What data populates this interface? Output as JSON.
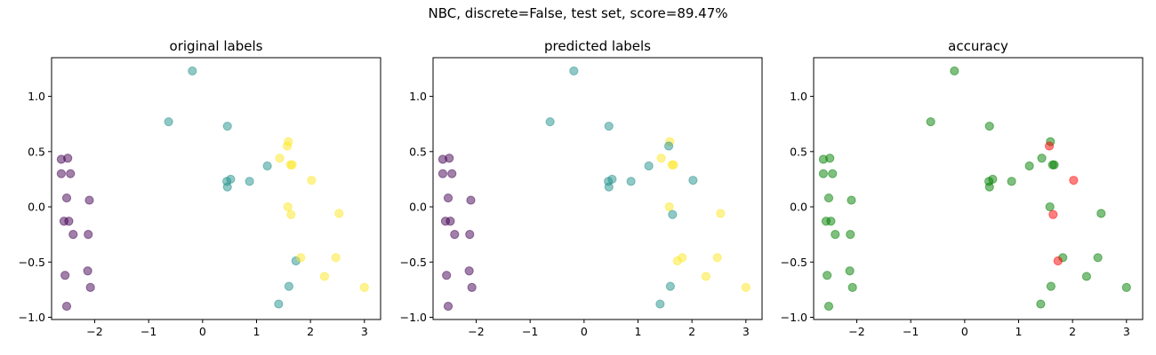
{
  "figure": {
    "suptitle": "NBC, discrete=False, test set, score=89.47%"
  },
  "chart_data": [
    {
      "type": "scatter",
      "title": "original labels",
      "xlim": [
        -2.8,
        3.3
      ],
      "ylim": [
        -1.02,
        1.35
      ],
      "xticks": [
        -2,
        -1,
        0,
        1,
        2,
        3
      ],
      "xtick_labels": [
        "−2",
        "−1",
        "0",
        "1",
        "2",
        "3"
      ],
      "yticks": [
        -1.0,
        -0.5,
        0.0,
        0.5,
        1.0
      ],
      "ytick_labels": [
        "−1.0",
        "−0.5",
        "0.0",
        "0.5",
        "1.0"
      ],
      "grid": false,
      "points": [
        {
          "x": -2.62,
          "y": 0.43,
          "color": "#440154"
        },
        {
          "x": -2.5,
          "y": 0.44,
          "color": "#440154"
        },
        {
          "x": -2.62,
          "y": 0.3,
          "color": "#440154"
        },
        {
          "x": -2.45,
          "y": 0.3,
          "color": "#440154"
        },
        {
          "x": -2.52,
          "y": 0.08,
          "color": "#440154"
        },
        {
          "x": -2.1,
          "y": 0.06,
          "color": "#440154"
        },
        {
          "x": -2.57,
          "y": -0.13,
          "color": "#440154"
        },
        {
          "x": -2.48,
          "y": -0.13,
          "color": "#440154"
        },
        {
          "x": -2.4,
          "y": -0.25,
          "color": "#440154"
        },
        {
          "x": -2.12,
          "y": -0.25,
          "color": "#440154"
        },
        {
          "x": -2.13,
          "y": -0.58,
          "color": "#440154"
        },
        {
          "x": -2.55,
          "y": -0.62,
          "color": "#440154"
        },
        {
          "x": -2.08,
          "y": -0.73,
          "color": "#440154"
        },
        {
          "x": -2.52,
          "y": -0.9,
          "color": "#440154"
        },
        {
          "x": -0.19,
          "y": 1.23,
          "color": "#21918c"
        },
        {
          "x": -0.63,
          "y": 0.77,
          "color": "#21918c"
        },
        {
          "x": 0.46,
          "y": 0.73,
          "color": "#21918c"
        },
        {
          "x": 1.2,
          "y": 0.37,
          "color": "#21918c"
        },
        {
          "x": 0.45,
          "y": 0.23,
          "color": "#21918c"
        },
        {
          "x": 0.52,
          "y": 0.25,
          "color": "#21918c"
        },
        {
          "x": 0.46,
          "y": 0.18,
          "color": "#21918c"
        },
        {
          "x": 0.87,
          "y": 0.23,
          "color": "#21918c"
        },
        {
          "x": 1.73,
          "y": -0.49,
          "color": "#21918c"
        },
        {
          "x": 1.6,
          "y": -0.72,
          "color": "#21918c"
        },
        {
          "x": 1.41,
          "y": -0.88,
          "color": "#21918c"
        },
        {
          "x": 1.59,
          "y": 0.59,
          "color": "#fde725"
        },
        {
          "x": 1.57,
          "y": 0.55,
          "color": "#fde725"
        },
        {
          "x": 1.43,
          "y": 0.44,
          "color": "#fde725"
        },
        {
          "x": 1.63,
          "y": 0.38,
          "color": "#fde725"
        },
        {
          "x": 1.66,
          "y": 0.38,
          "color": "#fde725"
        },
        {
          "x": 2.02,
          "y": 0.24,
          "color": "#fde725"
        },
        {
          "x": 1.58,
          "y": 0.0,
          "color": "#fde725"
        },
        {
          "x": 1.64,
          "y": -0.07,
          "color": "#fde725"
        },
        {
          "x": 2.53,
          "y": -0.06,
          "color": "#fde725"
        },
        {
          "x": 1.82,
          "y": -0.46,
          "color": "#fde725"
        },
        {
          "x": 2.47,
          "y": -0.46,
          "color": "#fde725"
        },
        {
          "x": 2.26,
          "y": -0.63,
          "color": "#fde725"
        },
        {
          "x": 3.0,
          "y": -0.73,
          "color": "#fde725"
        }
      ]
    },
    {
      "type": "scatter",
      "title": "predicted labels",
      "xlim": [
        -2.8,
        3.3
      ],
      "ylim": [
        -1.02,
        1.35
      ],
      "xticks": [
        -2,
        -1,
        0,
        1,
        2,
        3
      ],
      "xtick_labels": [
        "−2",
        "−1",
        "0",
        "1",
        "2",
        "3"
      ],
      "yticks": [
        -1.0,
        -0.5,
        0.0,
        0.5,
        1.0
      ],
      "ytick_labels": [
        "−1.0",
        "−0.5",
        "0.0",
        "0.5",
        "1.0"
      ],
      "grid": false,
      "points": [
        {
          "x": -2.62,
          "y": 0.43,
          "color": "#440154"
        },
        {
          "x": -2.5,
          "y": 0.44,
          "color": "#440154"
        },
        {
          "x": -2.62,
          "y": 0.3,
          "color": "#440154"
        },
        {
          "x": -2.45,
          "y": 0.3,
          "color": "#440154"
        },
        {
          "x": -2.52,
          "y": 0.08,
          "color": "#440154"
        },
        {
          "x": -2.1,
          "y": 0.06,
          "color": "#440154"
        },
        {
          "x": -2.57,
          "y": -0.13,
          "color": "#440154"
        },
        {
          "x": -2.48,
          "y": -0.13,
          "color": "#440154"
        },
        {
          "x": -2.4,
          "y": -0.25,
          "color": "#440154"
        },
        {
          "x": -2.12,
          "y": -0.25,
          "color": "#440154"
        },
        {
          "x": -2.13,
          "y": -0.58,
          "color": "#440154"
        },
        {
          "x": -2.55,
          "y": -0.62,
          "color": "#440154"
        },
        {
          "x": -2.08,
          "y": -0.73,
          "color": "#440154"
        },
        {
          "x": -2.52,
          "y": -0.9,
          "color": "#440154"
        },
        {
          "x": -0.19,
          "y": 1.23,
          "color": "#21918c"
        },
        {
          "x": -0.63,
          "y": 0.77,
          "color": "#21918c"
        },
        {
          "x": 0.46,
          "y": 0.73,
          "color": "#21918c"
        },
        {
          "x": 1.2,
          "y": 0.37,
          "color": "#21918c"
        },
        {
          "x": 0.45,
          "y": 0.23,
          "color": "#21918c"
        },
        {
          "x": 0.52,
          "y": 0.25,
          "color": "#21918c"
        },
        {
          "x": 0.46,
          "y": 0.18,
          "color": "#21918c"
        },
        {
          "x": 0.87,
          "y": 0.23,
          "color": "#21918c"
        },
        {
          "x": 1.6,
          "y": -0.72,
          "color": "#21918c"
        },
        {
          "x": 1.41,
          "y": -0.88,
          "color": "#21918c"
        },
        {
          "x": 1.59,
          "y": 0.59,
          "color": "#fde725"
        },
        {
          "x": 1.57,
          "y": 0.55,
          "color": "#21918c"
        },
        {
          "x": 1.43,
          "y": 0.44,
          "color": "#fde725"
        },
        {
          "x": 1.63,
          "y": 0.38,
          "color": "#fde725"
        },
        {
          "x": 1.66,
          "y": 0.38,
          "color": "#fde725"
        },
        {
          "x": 2.02,
          "y": 0.24,
          "color": "#21918c"
        },
        {
          "x": 1.58,
          "y": 0.0,
          "color": "#fde725"
        },
        {
          "x": 1.64,
          "y": -0.07,
          "color": "#21918c"
        },
        {
          "x": 2.53,
          "y": -0.06,
          "color": "#fde725"
        },
        {
          "x": 1.73,
          "y": -0.49,
          "color": "#fde725"
        },
        {
          "x": 1.82,
          "y": -0.46,
          "color": "#fde725"
        },
        {
          "x": 2.47,
          "y": -0.46,
          "color": "#fde725"
        },
        {
          "x": 2.26,
          "y": -0.63,
          "color": "#fde725"
        },
        {
          "x": 3.0,
          "y": -0.73,
          "color": "#fde725"
        }
      ]
    },
    {
      "type": "scatter",
      "title": "accuracy",
      "xlim": [
        -2.8,
        3.3
      ],
      "ylim": [
        -1.02,
        1.35
      ],
      "xticks": [
        -2,
        -1,
        0,
        1,
        2,
        3
      ],
      "xtick_labels": [
        "−2",
        "−1",
        "0",
        "1",
        "2",
        "3"
      ],
      "yticks": [
        -1.0,
        -0.5,
        0.0,
        0.5,
        1.0
      ],
      "ytick_labels": [
        "−1.0",
        "−0.5",
        "0.0",
        "0.5",
        "1.0"
      ],
      "grid": false,
      "points": [
        {
          "x": -2.62,
          "y": 0.43,
          "color": "#008000"
        },
        {
          "x": -2.5,
          "y": 0.44,
          "color": "#008000"
        },
        {
          "x": -2.62,
          "y": 0.3,
          "color": "#008000"
        },
        {
          "x": -2.45,
          "y": 0.3,
          "color": "#008000"
        },
        {
          "x": -2.52,
          "y": 0.08,
          "color": "#008000"
        },
        {
          "x": -2.1,
          "y": 0.06,
          "color": "#008000"
        },
        {
          "x": -2.57,
          "y": -0.13,
          "color": "#008000"
        },
        {
          "x": -2.48,
          "y": -0.13,
          "color": "#008000"
        },
        {
          "x": -2.4,
          "y": -0.25,
          "color": "#008000"
        },
        {
          "x": -2.12,
          "y": -0.25,
          "color": "#008000"
        },
        {
          "x": -2.13,
          "y": -0.58,
          "color": "#008000"
        },
        {
          "x": -2.55,
          "y": -0.62,
          "color": "#008000"
        },
        {
          "x": -2.08,
          "y": -0.73,
          "color": "#008000"
        },
        {
          "x": -2.52,
          "y": -0.9,
          "color": "#008000"
        },
        {
          "x": -0.19,
          "y": 1.23,
          "color": "#008000"
        },
        {
          "x": -0.63,
          "y": 0.77,
          "color": "#008000"
        },
        {
          "x": 0.46,
          "y": 0.73,
          "color": "#008000"
        },
        {
          "x": 1.2,
          "y": 0.37,
          "color": "#008000"
        },
        {
          "x": 0.45,
          "y": 0.23,
          "color": "#008000"
        },
        {
          "x": 0.52,
          "y": 0.25,
          "color": "#008000"
        },
        {
          "x": 0.46,
          "y": 0.18,
          "color": "#008000"
        },
        {
          "x": 0.87,
          "y": 0.23,
          "color": "#008000"
        },
        {
          "x": 1.6,
          "y": -0.72,
          "color": "#008000"
        },
        {
          "x": 1.41,
          "y": -0.88,
          "color": "#008000"
        },
        {
          "x": 1.59,
          "y": 0.59,
          "color": "#008000"
        },
        {
          "x": 1.43,
          "y": 0.44,
          "color": "#008000"
        },
        {
          "x": 1.63,
          "y": 0.38,
          "color": "#008000"
        },
        {
          "x": 1.66,
          "y": 0.38,
          "color": "#008000"
        },
        {
          "x": 1.58,
          "y": 0.0,
          "color": "#008000"
        },
        {
          "x": 2.53,
          "y": -0.06,
          "color": "#008000"
        },
        {
          "x": 1.82,
          "y": -0.46,
          "color": "#008000"
        },
        {
          "x": 2.47,
          "y": -0.46,
          "color": "#008000"
        },
        {
          "x": 2.26,
          "y": -0.63,
          "color": "#008000"
        },
        {
          "x": 3.0,
          "y": -0.73,
          "color": "#008000"
        },
        {
          "x": 1.57,
          "y": 0.55,
          "color": "#ff0000"
        },
        {
          "x": 2.02,
          "y": 0.24,
          "color": "#ff0000"
        },
        {
          "x": 1.64,
          "y": -0.07,
          "color": "#ff0000"
        },
        {
          "x": 1.73,
          "y": -0.49,
          "color": "#ff0000"
        }
      ]
    }
  ]
}
